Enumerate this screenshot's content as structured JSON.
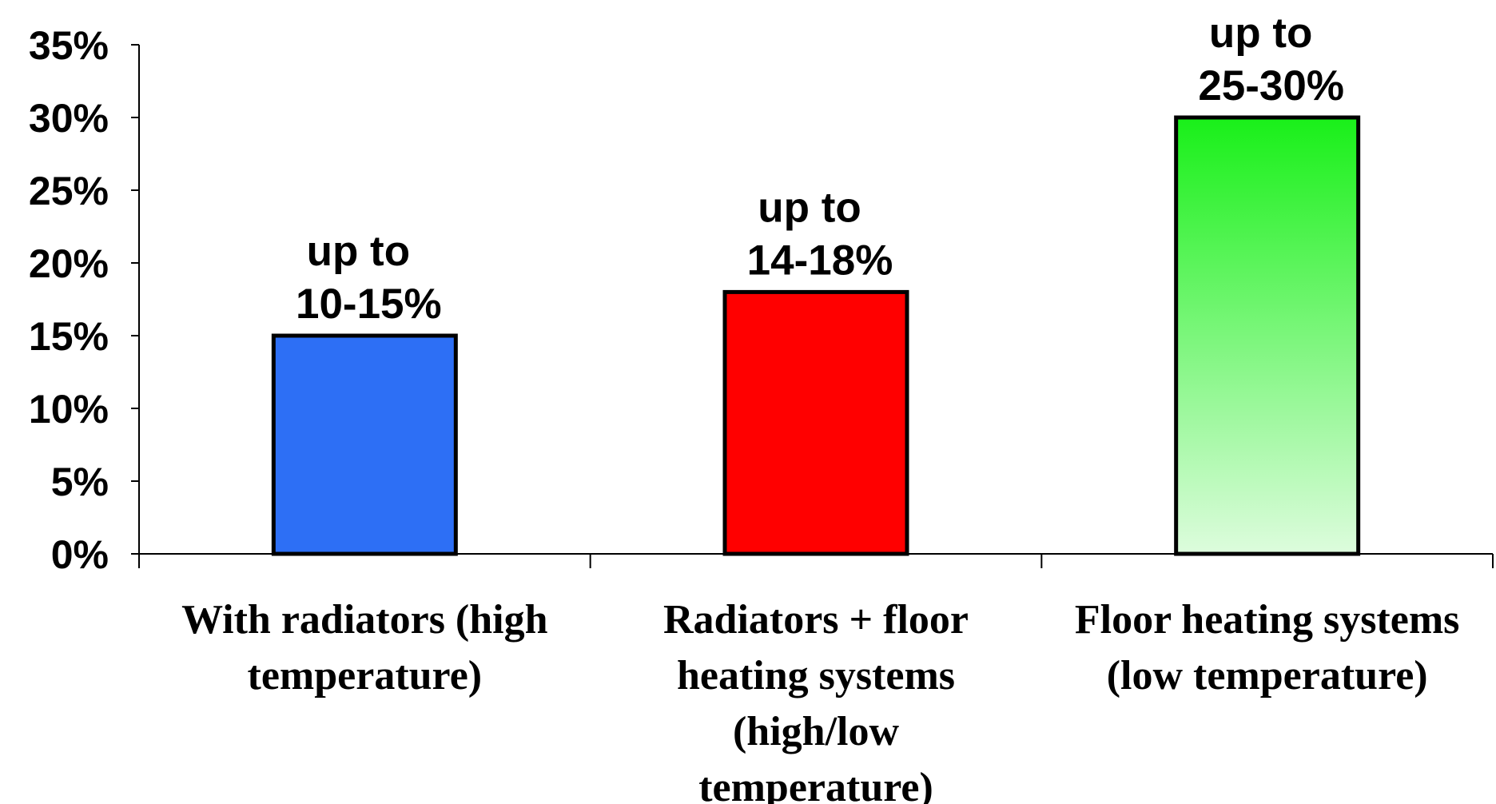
{
  "chart_data": {
    "type": "bar",
    "title": "",
    "xlabel": "",
    "ylabel": "",
    "ylim": [
      0,
      35
    ],
    "yticks": [
      "0%",
      "5%",
      "10%",
      "15%",
      "20%",
      "25%",
      "30%",
      "35%"
    ],
    "categories": [
      [
        "With radiators (high",
        "temperature)"
      ],
      [
        "Radiators + floor",
        "heating systems",
        "(high/low",
        "temperature)"
      ],
      [
        "Floor heating systems",
        "(low temperature)"
      ]
    ],
    "values": [
      15,
      18,
      30
    ],
    "data_labels": [
      [
        "up to",
        "10-15%"
      ],
      [
        "up to",
        "14-18%"
      ],
      [
        "up to",
        "25-30%"
      ]
    ],
    "colors": [
      "#2d6ff5",
      "#ff0000",
      "gradient-green"
    ],
    "gradient": {
      "top": "#19f019",
      "bottom": "#ddfcdd"
    },
    "grid": false,
    "legend": "none"
  }
}
